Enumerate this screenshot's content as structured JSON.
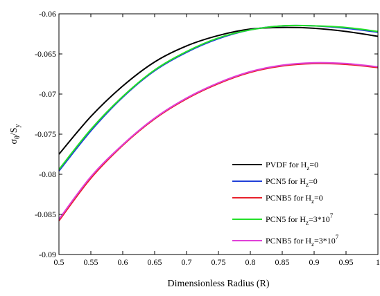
{
  "chart_data": {
    "type": "line",
    "xlabel": "Dimensionless Radius (R)",
    "ylabel": {
      "main": "σ",
      "sub1": "θ",
      "mid": "/S",
      "sub2": "y"
    },
    "xlim": [
      0.5,
      1
    ],
    "ylim": [
      -0.09,
      -0.06
    ],
    "x_ticks": [
      0.5,
      0.55,
      0.6,
      0.65,
      0.7,
      0.75,
      0.8,
      0.85,
      0.9,
      0.95,
      1
    ],
    "x_tick_labels": [
      "0.5",
      "0.55",
      "0.6",
      "0.65",
      "0.7",
      "0.75",
      "0.8",
      "0.85",
      "0.9",
      "0.95",
      "1"
    ],
    "y_ticks": [
      -0.09,
      -0.085,
      -0.08,
      -0.075,
      -0.07,
      -0.065,
      -0.06
    ],
    "y_tick_labels": [
      "-0.09",
      "-0.085",
      "-0.08",
      "-0.075",
      "-0.07",
      "-0.065",
      "-0.06"
    ],
    "grid": false,
    "legend_position": "bottom-right",
    "x": [
      0.5,
      0.55,
      0.6,
      0.65,
      0.7,
      0.75,
      0.8,
      0.85,
      0.9,
      0.95,
      1.0
    ],
    "series": [
      {
        "name": "PVDF for H_z=0",
        "legend": {
          "pre": "PVDF for H",
          "sub": "z",
          "post": "=0",
          "sup": ""
        },
        "color": "#000000",
        "values": [
          -0.0775,
          -0.0728,
          -0.069,
          -0.066,
          -0.064,
          -0.0627,
          -0.0619,
          -0.0617,
          -0.0618,
          -0.0622,
          -0.0628
        ]
      },
      {
        "name": "PCN5 for H_z=0",
        "legend": {
          "pre": "PCN5 for H",
          "sub": "z",
          "post": "=0",
          "sup": ""
        },
        "color": "#1f3fd8",
        "values": [
          -0.0796,
          -0.0746,
          -0.0704,
          -0.0671,
          -0.0648,
          -0.0631,
          -0.062,
          -0.0615,
          -0.0615,
          -0.0618,
          -0.0623
        ]
      },
      {
        "name": "PCNB5 for H_z=0",
        "legend": {
          "pre": "PCNB5 for H",
          "sub": "z",
          "post": "=0",
          "sup": ""
        },
        "color": "#e8202a",
        "values": [
          -0.0858,
          -0.0805,
          -0.0764,
          -0.0731,
          -0.0706,
          -0.0687,
          -0.0673,
          -0.0665,
          -0.0662,
          -0.0663,
          -0.0667
        ]
      },
      {
        "name": "PCN5 for H_z=3*10^7",
        "legend": {
          "pre": "PCN5 for H",
          "sub": "z",
          "post": "=3*10",
          "sup": "7"
        },
        "color": "#22e028",
        "values": [
          -0.0794,
          -0.0744,
          -0.0703,
          -0.067,
          -0.0647,
          -0.063,
          -0.062,
          -0.0615,
          -0.0615,
          -0.0617,
          -0.0622
        ]
      },
      {
        "name": "PCNB5 for H_z=3*10^7",
        "legend": {
          "pre": "PCNB5 for H",
          "sub": "z",
          "post": "=3*10",
          "sup": "7"
        },
        "color": "#e040d8",
        "values": [
          -0.0856,
          -0.0803,
          -0.0763,
          -0.073,
          -0.0705,
          -0.0686,
          -0.0672,
          -0.0664,
          -0.0661,
          -0.0662,
          -0.0666
        ]
      }
    ]
  }
}
